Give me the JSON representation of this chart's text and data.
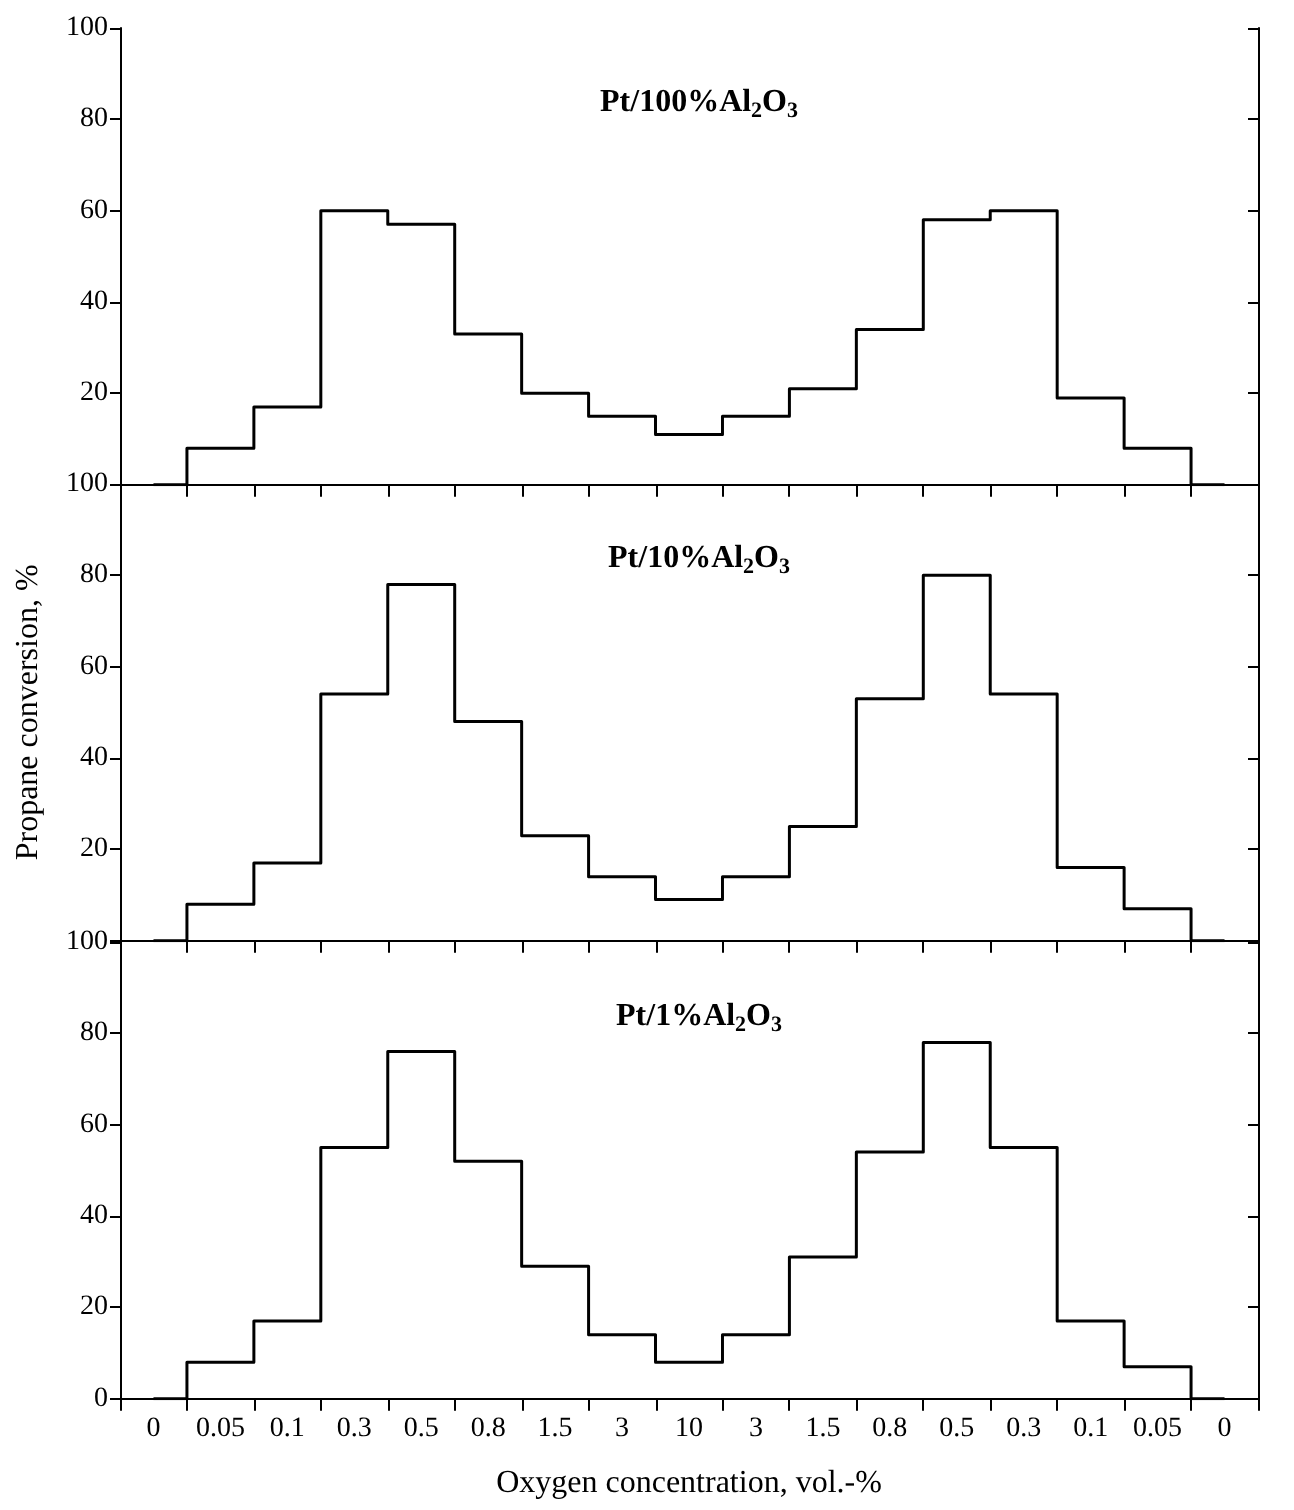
{
  "chart_data": [
    {
      "type": "step",
      "title": "Pt/100%Al$_{2}$O$_{3}$",
      "categories": [
        null,
        null,
        null,
        null,
        null,
        null,
        null,
        null,
        null,
        null,
        null,
        null,
        null,
        null,
        null,
        null,
        null
      ],
      "series": [
        {
          "color": "#000000",
          "values": [
            0,
            8,
            17,
            60,
            57,
            33,
            20,
            15,
            11,
            15,
            21,
            34,
            58,
            60,
            19,
            8,
            0
          ]
        }
      ],
      "ylim": [
        0,
        100
      ],
      "yticks": [
        {
          "value": 0,
          "label": null
        },
        20,
        40,
        60,
        80,
        100
      ],
      "tick_labels": "y",
      "grid": false,
      "marker": "none"
    },
    {
      "type": "step",
      "title": "Pt/10%Al$_{2}$O$_{3}$",
      "ylabel": "Propane conversion, %",
      "categories": [
        null,
        null,
        null,
        null,
        null,
        null,
        null,
        null,
        null,
        null,
        null,
        null,
        null,
        null,
        null,
        null,
        null
      ],
      "series": [
        {
          "color": "#000000",
          "values": [
            0,
            8,
            17,
            54,
            78,
            48,
            23,
            14,
            9,
            14,
            25,
            53,
            80,
            54,
            16,
            7,
            0
          ]
        }
      ],
      "ylim": [
        0,
        100
      ],
      "yticks": [
        {
          "value": 0,
          "label": null
        },
        20,
        40,
        60,
        80,
        100
      ],
      "tick_labels": "y",
      "grid": false,
      "marker": "none"
    },
    {
      "type": "step",
      "title": "Pt/1%Al$_{2}$O$_{3}$",
      "xlabel": "Oxygen concentration, vol.-%",
      "categories": [
        "0",
        "0.05",
        "0.1",
        "0.3",
        "0.5",
        "0.8",
        "1.5",
        "3",
        "10",
        "3",
        "1.5",
        "0.8",
        "0.5",
        "0.3",
        "0.1",
        "0.05",
        "0"
      ],
      "series": [
        {
          "color": "#000000",
          "values": [
            0,
            8,
            17,
            55,
            76,
            52,
            29,
            14,
            8,
            14,
            31,
            54,
            78,
            55,
            17,
            7,
            0
          ]
        }
      ],
      "ylim": [
        0,
        100
      ],
      "yticks": [
        0,
        20,
        40,
        60,
        80,
        100
      ],
      "grid": false,
      "marker": "none"
    }
  ]
}
